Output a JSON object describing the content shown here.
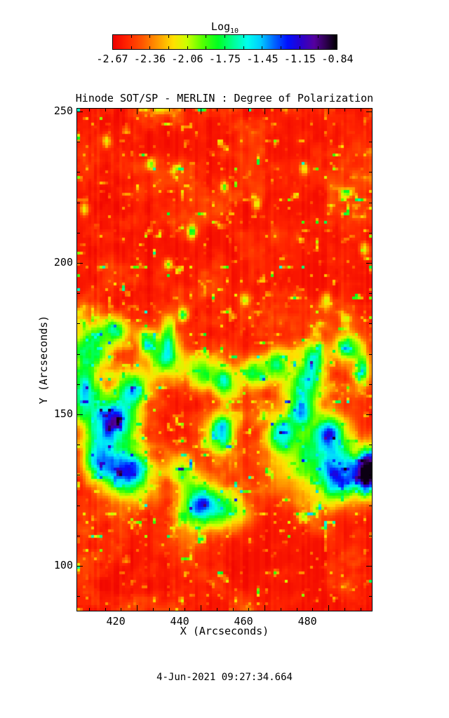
{
  "header": {
    "colorbar_title": "Log",
    "colorbar_title_sub": "10",
    "colorbar_tick_labels": [
      "-2.67",
      "-2.36",
      "-2.06",
      "-1.75",
      "-1.45",
      "-1.15",
      "-0.84"
    ]
  },
  "footer": {
    "timestamp": "4-Jun-2021 09:27:34.664"
  },
  "colors": {
    "background": "#ffffff",
    "axis": "#000000",
    "colormap_stops": [
      [
        0.0,
        "#ee0000"
      ],
      [
        0.06,
        "#ff2200"
      ],
      [
        0.13,
        "#ff5500"
      ],
      [
        0.2,
        "#ff9900"
      ],
      [
        0.27,
        "#ffe000"
      ],
      [
        0.33,
        "#ccff00"
      ],
      [
        0.4,
        "#55ff00"
      ],
      [
        0.47,
        "#00ff22"
      ],
      [
        0.54,
        "#00ff99"
      ],
      [
        0.6,
        "#00ffee"
      ],
      [
        0.66,
        "#00ccff"
      ],
      [
        0.72,
        "#0066ff"
      ],
      [
        0.78,
        "#0011ff"
      ],
      [
        0.84,
        "#2a00cc"
      ],
      [
        0.9,
        "#55009e"
      ],
      [
        0.95,
        "#2e0050"
      ],
      [
        1.0,
        "#000000"
      ]
    ]
  },
  "chart_data": {
    "type": "heatmap",
    "title": "Hinode SOT/SP - MERLIN : Degree of Polarization",
    "xlabel": "X (Arcseconds)",
    "ylabel": "Y (Arcseconds)",
    "x_range": [
      401.3,
      493.6
    ],
    "y_range": [
      85.2,
      250.9
    ],
    "x_major_ticks": [
      420,
      440,
      460,
      480
    ],
    "x_minor_step": 5,
    "y_major_ticks": [
      250,
      200,
      150,
      100
    ],
    "y_minor_step": 10,
    "grid": false,
    "colorbar": {
      "label": "Log10",
      "orientation": "horizontal",
      "position": "top",
      "tick_values": [
        -2.67,
        -2.36,
        -2.06,
        -1.75,
        -1.45,
        -1.15,
        -0.84
      ],
      "range": [
        -2.67,
        -0.84
      ],
      "minor_tick_divisions": 12
    },
    "value_description": "Log10 degree of polarization map; quiet-sun background ~ -2.7 to -2.3 (red/orange) with magnetic network patches ~ -1.8 to -0.9 (green/cyan/blue) and dark cores near -0.84 (purple/black)",
    "seed": 1337,
    "features": [
      [
        0.05,
        0.475,
        0.075,
        0.05,
        0.7
      ],
      [
        0.02,
        0.56,
        0.05,
        0.05,
        0.8
      ],
      [
        0.115,
        0.625,
        0.09,
        0.055,
        1.15
      ],
      [
        0.17,
        0.715,
        0.075,
        0.035,
        0.85
      ],
      [
        0.07,
        0.7,
        0.055,
        0.04,
        0.8
      ],
      [
        0.19,
        0.56,
        0.055,
        0.04,
        0.7
      ],
      [
        0.13,
        0.44,
        0.05,
        0.03,
        0.6
      ],
      [
        0.24,
        0.46,
        0.035,
        0.025,
        0.55
      ],
      [
        0.31,
        0.45,
        0.025,
        0.04,
        0.6
      ],
      [
        0.165,
        0.75,
        0.09,
        0.05,
        0.45
      ],
      [
        0.3,
        0.5,
        0.07,
        0.04,
        0.65
      ],
      [
        0.42,
        0.525,
        0.05,
        0.035,
        0.6
      ],
      [
        0.5,
        0.545,
        0.045,
        0.035,
        0.7
      ],
      [
        0.6,
        0.525,
        0.05,
        0.035,
        0.55
      ],
      [
        0.68,
        0.51,
        0.045,
        0.035,
        0.65
      ],
      [
        0.8,
        0.5,
        0.05,
        0.035,
        0.6
      ],
      [
        0.92,
        0.475,
        0.05,
        0.03,
        0.6
      ],
      [
        0.78,
        0.545,
        0.055,
        0.035,
        0.6
      ],
      [
        0.49,
        0.645,
        0.05,
        0.042,
        0.85
      ],
      [
        0.69,
        0.65,
        0.045,
        0.032,
        0.8
      ],
      [
        0.76,
        0.6,
        0.05,
        0.038,
        0.75
      ],
      [
        0.8,
        0.695,
        0.15,
        0.085,
        0.55
      ],
      [
        0.9,
        0.73,
        0.07,
        0.05,
        0.95
      ],
      [
        0.985,
        0.725,
        0.035,
        0.045,
        1.35
      ],
      [
        0.86,
        0.645,
        0.05,
        0.035,
        0.7
      ],
      [
        0.97,
        0.52,
        0.03,
        0.035,
        0.55
      ],
      [
        0.424,
        0.79,
        0.075,
        0.05,
        0.95
      ],
      [
        0.52,
        0.8,
        0.06,
        0.04,
        0.45
      ],
      [
        0.35,
        0.72,
        0.05,
        0.035,
        0.55
      ],
      [
        0.39,
        0.245,
        0.018,
        0.015,
        0.55
      ],
      [
        0.25,
        0.11,
        0.015,
        0.013,
        0.5
      ],
      [
        0.1,
        0.065,
        0.013,
        0.012,
        0.45
      ],
      [
        0.61,
        0.19,
        0.014,
        0.012,
        0.5
      ],
      [
        0.77,
        0.12,
        0.014,
        0.012,
        0.5
      ],
      [
        0.975,
        0.28,
        0.015,
        0.013,
        0.5
      ],
      [
        0.845,
        0.38,
        0.016,
        0.014,
        0.5
      ],
      [
        0.57,
        0.38,
        0.015,
        0.013,
        0.45
      ],
      [
        0.36,
        0.41,
        0.02,
        0.016,
        0.55
      ],
      [
        0.025,
        0.2,
        0.015,
        0.013,
        0.45
      ],
      [
        0.31,
        0.31,
        0.015,
        0.012,
        0.45
      ],
      [
        0.5,
        0.155,
        0.013,
        0.011,
        0.45
      ]
    ]
  }
}
